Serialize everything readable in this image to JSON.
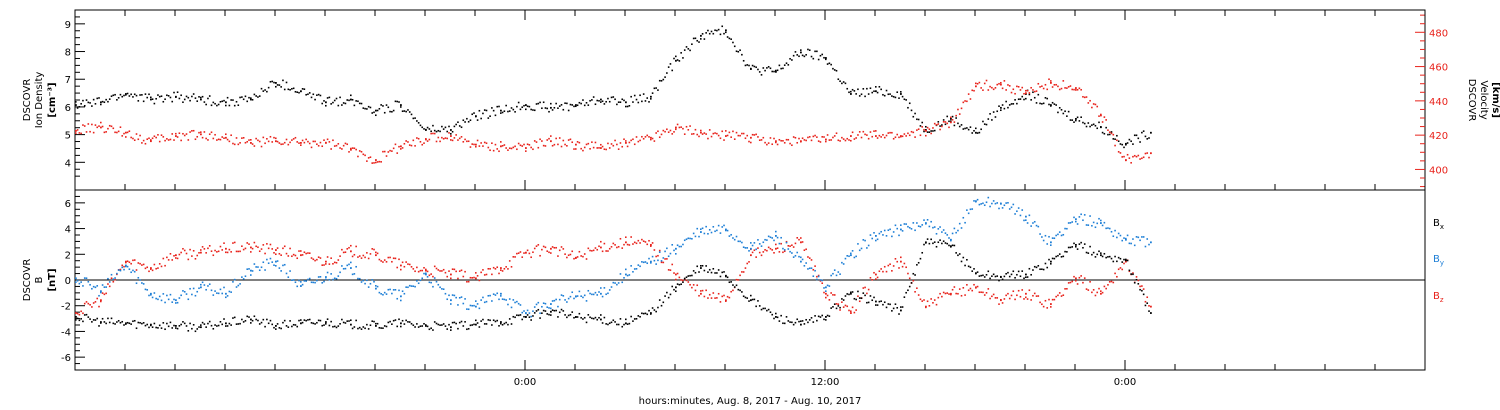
{
  "xaxis": {
    "label": "hours:minutes, Aug.  8, 2017 - Aug. 10, 2017",
    "range_hours": [
      -18,
      36
    ],
    "major_ticks": [
      {
        "hour": 0,
        "label": "0:00"
      },
      {
        "hour": 12,
        "label": "12:00"
      },
      {
        "hour": 24,
        "label": "0:00"
      }
    ],
    "minor_tick_step_hours": 2
  },
  "panels": {
    "top": {
      "left_ylabel": {
        "line1": "DSCOVR",
        "line2": "Ion Density",
        "units": "[cm⁻³]"
      },
      "right_ylabel": {
        "line1": "DSCOVR",
        "line2": "Velocity",
        "units": "[km/s]"
      },
      "left_ticks": [
        "4",
        "5",
        "6",
        "7",
        "8",
        "9"
      ],
      "right_ticks": [
        "400",
        "420",
        "440",
        "460",
        "480"
      ]
    },
    "bottom": {
      "ylabel": {
        "line1": "DSCOVR",
        "line2": "B",
        "units": "[nT]"
      },
      "ticks": [
        "-6",
        "-4",
        "-2",
        "0",
        "2",
        "4",
        "6"
      ],
      "legend": [
        {
          "name": "B",
          "sub": "x",
          "color": "#000000"
        },
        {
          "name": "B",
          "sub": "y",
          "color": "#1e7fd6"
        },
        {
          "name": "B",
          "sub": "z",
          "color": "#e8231c"
        }
      ]
    }
  },
  "colors": {
    "black": "#000000",
    "red": "#e8231c",
    "blue": "#1e7fd6"
  },
  "chart_data": [
    {
      "type": "scatter",
      "panel": "top",
      "x_units": "hours from 0:00 Aug. 9, 2017",
      "xlim": [
        -18,
        36
      ],
      "ylim_left": [
        3.0,
        9.5
      ],
      "ylim_right": [
        388,
        493
      ],
      "series": [
        {
          "axis": "left",
          "color": "#000000",
          "x": [
            -18,
            -17,
            -16,
            -15,
            -14,
            -13,
            -12,
            -11,
            -10,
            -9,
            -8,
            -7,
            -6,
            -5,
            -4,
            -3,
            -2,
            -1,
            0,
            1,
            2,
            3,
            4,
            5,
            6,
            7,
            8,
            9,
            10,
            11,
            12,
            13,
            14,
            15,
            16,
            17,
            18,
            19,
            20,
            21,
            22,
            23,
            24,
            25
          ],
          "y": [
            6.1,
            6.2,
            6.5,
            6.3,
            6.4,
            6.3,
            6.2,
            6.3,
            6.9,
            6.6,
            6.2,
            6.3,
            5.9,
            6.1,
            5.2,
            5.2,
            5.7,
            5.9,
            6.1,
            6.0,
            6.1,
            6.3,
            6.2,
            6.4,
            7.7,
            8.6,
            8.8,
            7.4,
            7.3,
            8.0,
            7.8,
            6.5,
            6.6,
            6.5,
            5.2,
            5.6,
            5.1,
            6.0,
            6.5,
            6.1,
            5.6,
            5.3,
            4.7,
            5.1
          ]
        },
        {
          "axis": "right",
          "color": "#e8231c",
          "x": [
            -18,
            -17,
            -16,
            -15,
            -14,
            -13,
            -12,
            -11,
            -10,
            -9,
            -8,
            -7,
            -6,
            -5,
            -4,
            -3,
            -2,
            -1,
            0,
            1,
            2,
            3,
            4,
            5,
            6,
            7,
            8,
            9,
            10,
            11,
            12,
            13,
            14,
            15,
            16,
            17,
            18,
            19,
            20,
            21,
            22,
            23,
            24,
            25
          ],
          "y": [
            423,
            425,
            422,
            417,
            420,
            421,
            419,
            416,
            417,
            416,
            416,
            412,
            406,
            414,
            418,
            420,
            415,
            414,
            413,
            417,
            415,
            413,
            416,
            419,
            425,
            422,
            420,
            419,
            417,
            417,
            418,
            420,
            420,
            420,
            423,
            428,
            449,
            450,
            445,
            451,
            448,
            432,
            406,
            410
          ]
        }
      ]
    },
    {
      "type": "scatter",
      "panel": "bottom",
      "x_units": "hours from 0:00 Aug. 9, 2017",
      "xlim": [
        -18,
        36
      ],
      "ylim": [
        -7,
        7
      ],
      "series": [
        {
          "name": "Bx",
          "color": "#000000",
          "x": [
            -18,
            -17,
            -16,
            -15,
            -14,
            -13,
            -12,
            -11,
            -10,
            -9,
            -8,
            -7,
            -6,
            -5,
            -4,
            -3,
            -2,
            -1,
            0,
            1,
            2,
            3,
            4,
            5,
            6,
            7,
            8,
            9,
            10,
            11,
            12,
            13,
            14,
            15,
            16,
            17,
            18,
            19,
            20,
            21,
            22,
            23,
            24,
            25
          ],
          "y": [
            -2.8,
            -3.2,
            -3.3,
            -3.4,
            -3.5,
            -3.6,
            -3.3,
            -3.0,
            -3.5,
            -3.3,
            -3.2,
            -3.4,
            -3.5,
            -3.3,
            -3.5,
            -3.6,
            -3.4,
            -3.2,
            -2.8,
            -2.4,
            -2.8,
            -3.0,
            -3.3,
            -2.5,
            -0.5,
            1.0,
            0.4,
            -1.5,
            -2.8,
            -3.4,
            -2.8,
            -1.0,
            -1.6,
            -2.3,
            3.0,
            2.7,
            0.6,
            0.3,
            0.5,
            1.5,
            2.8,
            2.0,
            1.6,
            -2.5
          ]
        },
        {
          "name": "By",
          "color": "#1e7fd6",
          "x": [
            -18,
            -17,
            -16,
            -15,
            -14,
            -13,
            -12,
            -11,
            -10,
            -9,
            -8,
            -7,
            -6,
            -5,
            -4,
            -3,
            -2,
            -1,
            0,
            1,
            2,
            3,
            4,
            5,
            6,
            7,
            8,
            9,
            10,
            11,
            12,
            13,
            14,
            15,
            16,
            17,
            18,
            19,
            20,
            21,
            22,
            23,
            24,
            25
          ],
          "y": [
            0.2,
            -0.8,
            1.2,
            -1.0,
            -1.5,
            -0.5,
            -1.0,
            0.8,
            1.5,
            -0.4,
            0.3,
            1.0,
            -0.6,
            -1.2,
            0.5,
            -1.5,
            -2.0,
            -1.0,
            -2.5,
            -1.8,
            -1.2,
            -1.0,
            0.5,
            1.5,
            2.5,
            3.8,
            4.0,
            2.5,
            3.5,
            1.5,
            -0.5,
            2.0,
            3.5,
            4.0,
            4.5,
            3.2,
            6.2,
            6.0,
            5.0,
            3.0,
            4.8,
            4.5,
            3.2,
            3.0
          ]
        },
        {
          "name": "Bz",
          "color": "#e8231c",
          "x": [
            -18,
            -17,
            -16,
            -15,
            -14,
            -13,
            -12,
            -11,
            -10,
            -9,
            -8,
            -7,
            -6,
            -5,
            -4,
            -3,
            -2,
            -1,
            0,
            1,
            2,
            3,
            4,
            5,
            6,
            7,
            8,
            9,
            10,
            11,
            12,
            13,
            14,
            15,
            16,
            17,
            18,
            19,
            20,
            21,
            22,
            23,
            24,
            25
          ],
          "y": [
            -2.5,
            -1.5,
            1.5,
            1.0,
            2.0,
            2.2,
            2.5,
            2.6,
            2.4,
            2.0,
            1.5,
            2.3,
            2.0,
            1.2,
            0.8,
            0.5,
            0.2,
            1.0,
            2.2,
            2.5,
            1.8,
            2.6,
            3.0,
            2.8,
            0.5,
            -1.0,
            -1.5,
            2.0,
            2.5,
            3.0,
            -1.0,
            -2.5,
            0.5,
            1.5,
            -2.0,
            -1.0,
            -0.5,
            -1.5,
            -1.0,
            -1.8,
            0.2,
            -1.0,
            1.5,
            -2.0
          ]
        }
      ]
    }
  ]
}
